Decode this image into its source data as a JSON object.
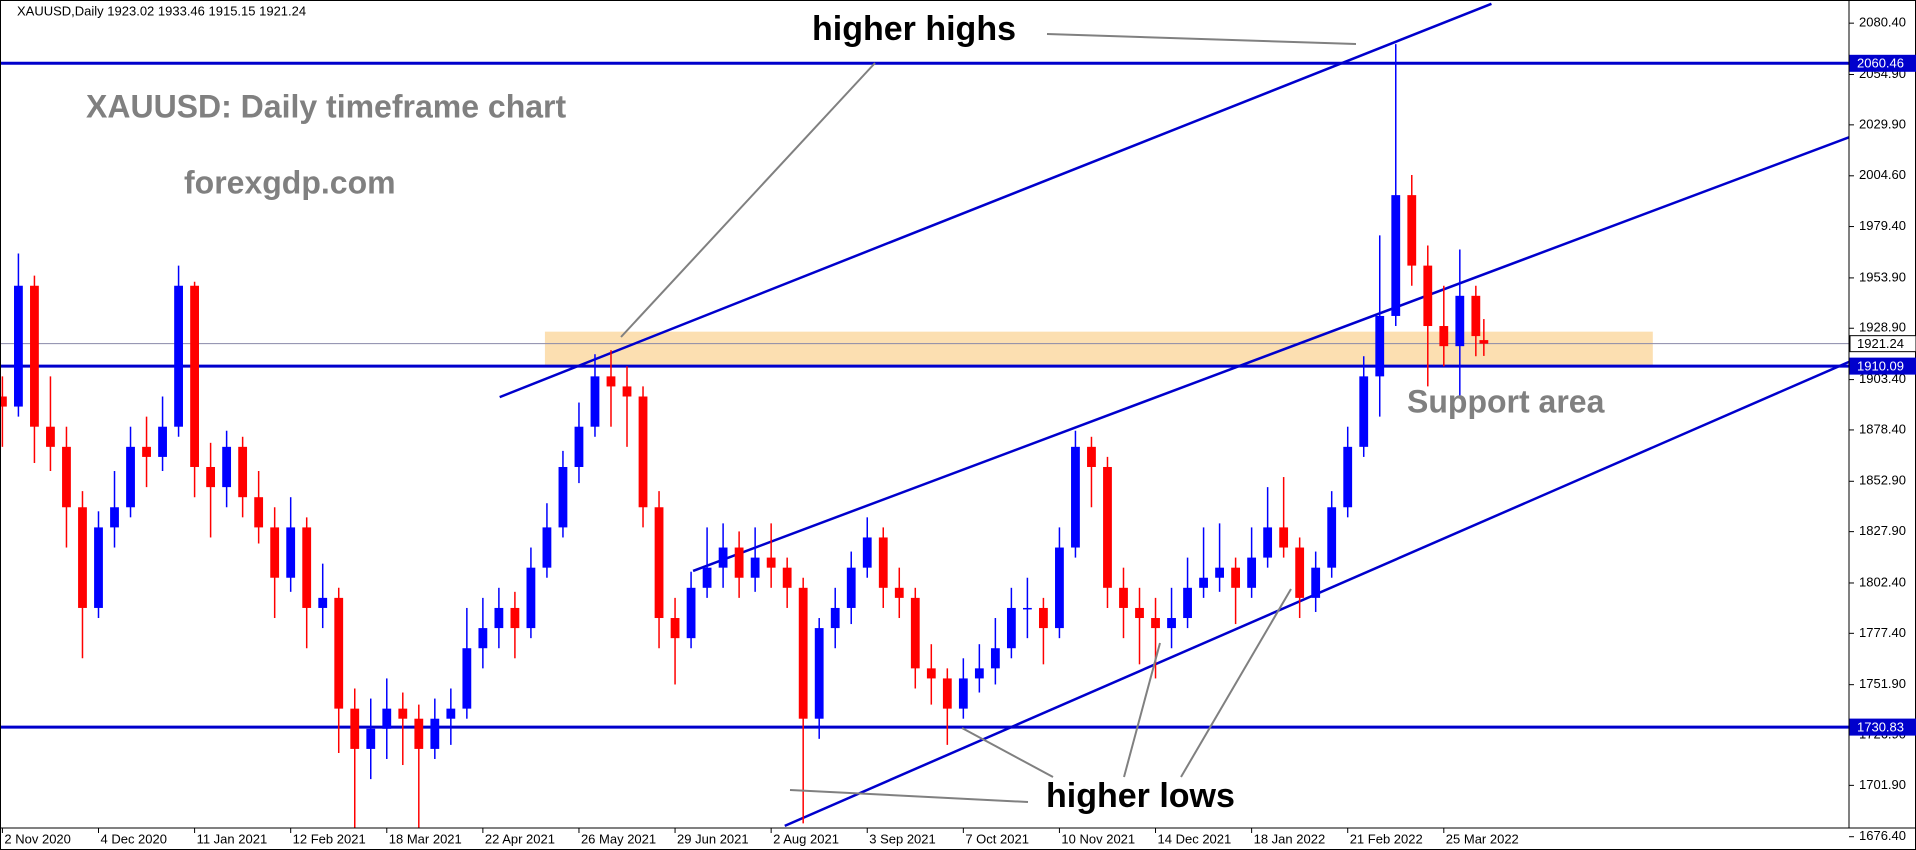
{
  "chart_data": {
    "type": "candlestick",
    "title": "XAUUSD,Daily  1923.02 1933.46 1915.15 1921.24",
    "annotations": [
      "higher highs",
      "XAUUSD: Daily timeframe chart",
      "forexgdp.com",
      "Support area",
      "higher lows"
    ],
    "up_color": "#0000ff",
    "down_color": "#ff0000",
    "x": [
      0,
      4,
      8,
      12,
      16,
      20,
      24,
      28,
      32,
      36,
      40,
      44,
      48,
      52,
      56,
      60,
      64,
      68,
      72,
      76,
      80,
      84,
      88,
      92,
      96,
      100,
      104,
      108,
      112,
      116,
      120,
      124,
      128,
      132,
      136,
      140,
      144,
      148,
      152,
      156,
      160,
      164,
      168,
      172,
      176,
      180,
      184,
      188,
      192,
      196,
      200,
      204,
      208,
      212,
      216,
      220,
      224,
      228,
      232,
      236,
      240,
      244,
      248,
      252,
      256,
      260,
      264,
      268,
      272,
      276,
      280,
      284,
      288,
      292,
      296,
      300,
      304,
      308,
      312,
      316,
      320,
      324,
      328,
      332,
      336,
      340,
      344,
      348,
      352,
      356,
      360,
      364,
      368,
      370
    ],
    "open": [
      1895,
      1890,
      1950,
      1880,
      1870,
      1840,
      1790,
      1830,
      1840,
      1870,
      1865,
      1880,
      1950,
      1860,
      1850,
      1870,
      1845,
      1830,
      1805,
      1830,
      1790,
      1795,
      1740,
      1720,
      1730,
      1740,
      1735,
      1720,
      1735,
      1740,
      1770,
      1780,
      1790,
      1780,
      1810,
      1830,
      1860,
      1880,
      1905,
      1900,
      1895,
      1840,
      1785,
      1775,
      1800,
      1810,
      1820,
      1805,
      1815,
      1810,
      1800,
      1735,
      1780,
      1790,
      1810,
      1825,
      1800,
      1795,
      1760,
      1755,
      1740,
      1755,
      1760,
      1770,
      1790,
      1790,
      1780,
      1820,
      1870,
      1860,
      1800,
      1790,
      1785,
      1780,
      1785,
      1800,
      1805,
      1810,
      1800,
      1815,
      1830,
      1820,
      1795,
      1810,
      1840,
      1870,
      1905,
      1935,
      1995,
      1960,
      1930,
      1920,
      1945,
      1923.02
    ],
    "high": [
      1905,
      1966,
      1955,
      1905,
      1880,
      1848,
      1838,
      1858,
      1880,
      1885,
      1895,
      1960,
      1952,
      1872,
      1878,
      1875,
      1858,
      1840,
      1845,
      1835,
      1812,
      1800,
      1750,
      1745,
      1755,
      1748,
      1742,
      1745,
      1750,
      1790,
      1795,
      1800,
      1798,
      1820,
      1842,
      1868,
      1892,
      1916,
      1918,
      1910,
      1900,
      1848,
      1795,
      1808,
      1830,
      1832,
      1828,
      1830,
      1832,
      1815,
      1805,
      1785,
      1800,
      1818,
      1835,
      1830,
      1810,
      1800,
      1772,
      1760,
      1765,
      1772,
      1785,
      1800,
      1805,
      1795,
      1830,
      1878,
      1875,
      1865,
      1810,
      1800,
      1795,
      1800,
      1815,
      1830,
      1832,
      1815,
      1830,
      1850,
      1855,
      1825,
      1818,
      1848,
      1880,
      1915,
      1975,
      2070,
      2005,
      1970,
      1950,
      1968,
      1950,
      1933.46
    ],
    "low": [
      1870,
      1885,
      1862,
      1858,
      1820,
      1765,
      1785,
      1820,
      1835,
      1850,
      1858,
      1875,
      1845,
      1825,
      1840,
      1835,
      1822,
      1785,
      1798,
      1770,
      1780,
      1718,
      1677,
      1705,
      1715,
      1712,
      1680,
      1715,
      1722,
      1735,
      1760,
      1770,
      1765,
      1775,
      1805,
      1825,
      1852,
      1875,
      1880,
      1870,
      1830,
      1770,
      1752,
      1770,
      1795,
      1800,
      1795,
      1798,
      1800,
      1790,
      1683,
      1725,
      1770,
      1782,
      1805,
      1790,
      1785,
      1750,
      1742,
      1722,
      1735,
      1748,
      1752,
      1765,
      1775,
      1762,
      1775,
      1815,
      1840,
      1790,
      1775,
      1762,
      1755,
      1770,
      1780,
      1795,
      1798,
      1782,
      1795,
      1810,
      1815,
      1785,
      1788,
      1805,
      1835,
      1865,
      1885,
      1930,
      1950,
      1900,
      1910,
      1895,
      1915,
      1915.15
    ],
    "close": [
      1890,
      1950,
      1880,
      1870,
      1840,
      1790,
      1830,
      1840,
      1870,
      1865,
      1880,
      1950,
      1860,
      1850,
      1870,
      1845,
      1830,
      1805,
      1830,
      1790,
      1795,
      1740,
      1720,
      1730,
      1740,
      1735,
      1720,
      1735,
      1740,
      1770,
      1780,
      1790,
      1780,
      1810,
      1830,
      1860,
      1880,
      1905,
      1900,
      1895,
      1840,
      1785,
      1775,
      1800,
      1810,
      1820,
      1805,
      1815,
      1810,
      1800,
      1735,
      1780,
      1790,
      1810,
      1825,
      1800,
      1795,
      1760,
      1755,
      1740,
      1755,
      1760,
      1770,
      1790,
      1790,
      1780,
      1820,
      1870,
      1860,
      1800,
      1790,
      1785,
      1780,
      1785,
      1800,
      1805,
      1810,
      1800,
      1815,
      1830,
      1820,
      1795,
      1810,
      1840,
      1870,
      1905,
      1935,
      1995,
      1960,
      1930,
      1920,
      1945,
      1925,
      1921.24
    ],
    "xlim": [
      -0.6,
      461.2
    ],
    "ylim": [
      1669.8,
      2091.9
    ],
    "xticks": [
      {
        "value": 0,
        "label": "2 Nov 2020"
      },
      {
        "value": 24,
        "label": "4 Dec 2020"
      },
      {
        "value": 48,
        "label": "11 Jan 2021"
      },
      {
        "value": 72,
        "label": "12 Feb 2021"
      },
      {
        "value": 96,
        "label": "18 Mar 2021"
      },
      {
        "value": 120,
        "label": "22 Apr 2021"
      },
      {
        "value": 144,
        "label": "26 May 2021"
      },
      {
        "value": 168,
        "label": "29 Jun 2021"
      },
      {
        "value": 192,
        "label": "2 Aug 2021"
      },
      {
        "value": 216,
        "label": "3 Sep 2021"
      },
      {
        "value": 240,
        "label": "7 Oct 2021"
      },
      {
        "value": 264,
        "label": "10 Nov 2021"
      },
      {
        "value": 288,
        "label": "14 Dec 2021"
      },
      {
        "value": 312,
        "label": "18 Jan 2022"
      },
      {
        "value": 336,
        "label": "21 Feb 2022"
      },
      {
        "value": 360,
        "label": "25 Mar 2022"
      }
    ],
    "yticks": [
      {
        "value": 2080.4,
        "label": "2080.40"
      },
      {
        "value": 2054.9,
        "label": "2054.90"
      },
      {
        "value": 2029.9,
        "label": "2029.90"
      },
      {
        "value": 2004.6,
        "label": "2004.60"
      },
      {
        "value": 1979.4,
        "label": "1979.40"
      },
      {
        "value": 1953.9,
        "label": "1953.90"
      },
      {
        "value": 1928.9,
        "label": "1928.90"
      },
      {
        "value": 1903.4,
        "label": "1903.40"
      },
      {
        "value": 1878.4,
        "label": "1878.40"
      },
      {
        "value": 1852.9,
        "label": "1852.90"
      },
      {
        "value": 1827.9,
        "label": "1827.90"
      },
      {
        "value": 1802.4,
        "label": "1802.40"
      },
      {
        "value": 1777.4,
        "label": "1777.40"
      },
      {
        "value": 1751.9,
        "label": "1751.90"
      },
      {
        "value": 1726.9,
        "label": "1726.90"
      },
      {
        "value": 1701.9,
        "label": "1701.90"
      },
      {
        "value": 1676.4,
        "label": "1676.40"
      }
    ],
    "grid": false,
    "hlines": [
      {
        "value": 2060.46,
        "color": "#0000cc"
      },
      {
        "value": 1910.09,
        "color": "#0000cc"
      },
      {
        "value": 1730.83,
        "color": "#0000cc"
      },
      {
        "value": 1921.24,
        "color": "#8a8aaa"
      }
    ],
    "trendlines": [
      {
        "x": [
          124.2,
          371.9
        ],
        "y": [
          1894.7,
          2090.0
        ],
        "color": "#0000cc"
      },
      {
        "x": [
          172.5,
          461.2
        ],
        "y": [
          1808.4,
          2023.7
        ],
        "color": "#0000cc"
      },
      {
        "x": [
          195.4,
          461.2
        ],
        "y": [
          1681.8,
          1912.2
        ],
        "color": "#0000cc"
      }
    ],
    "zone": {
      "x": [
        135.5,
        412.2
      ],
      "y": [
        1909.8,
        1927.2
      ],
      "color": "#fcd9a3"
    }
  }
}
